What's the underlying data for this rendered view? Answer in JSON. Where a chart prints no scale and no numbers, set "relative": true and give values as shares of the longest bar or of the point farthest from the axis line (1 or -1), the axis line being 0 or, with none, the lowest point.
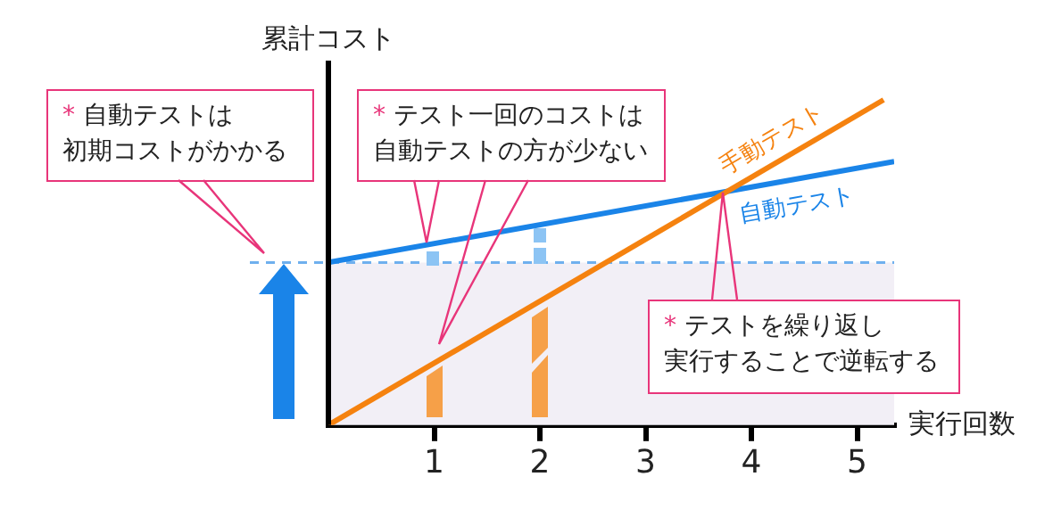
{
  "chart_data": {
    "type": "line",
    "relative": true,
    "xlabel": "実行回数",
    "ylabel": "累計コスト",
    "xlim": [
      0,
      5.35
    ],
    "xticks": [
      1,
      2,
      3,
      4,
      5
    ],
    "grid": false,
    "legend": false,
    "marker": "none",
    "line_style": "solid",
    "series": [
      {
        "name": "手動テスト",
        "color": "#f5820f",
        "x": [
          0,
          5.25
        ],
        "values": [
          0,
          1
        ]
      },
      {
        "name": "自動テスト",
        "color": "#1a84e8",
        "x": [
          0,
          5.35
        ],
        "values": [
          0.5,
          0.81
        ]
      }
    ],
    "ref_lines": [
      {
        "axis": "y",
        "value": 0.5,
        "color": "#6fb0ee",
        "line_style": "dashed"
      }
    ],
    "bands": [
      {
        "axis": "y",
        "from": 0,
        "to": 0.5,
        "color": "#f2eff6"
      }
    ],
    "annotations": [
      "* 自動テストは初期コストがかかる",
      "* テスト一回のコストは自動テストの方が少ない",
      "* テストを繰り返し実行することで逆転する"
    ]
  }
}
